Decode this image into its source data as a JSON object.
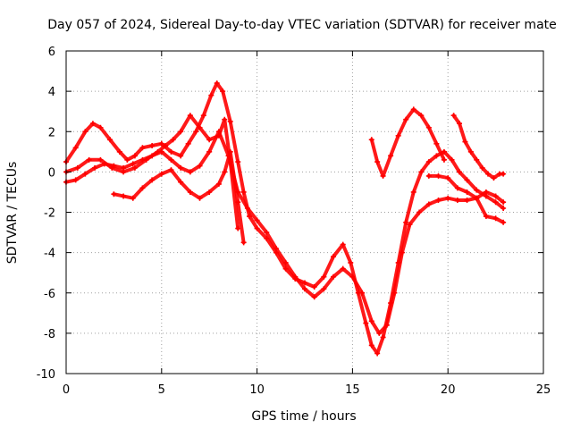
{
  "chart_data": {
    "type": "scatter",
    "title": "Day 057 of 2024, Sidereal Day-to-day VTEC variation (SDTVAR) for receiver mate",
    "xlabel": "GPS time / hours",
    "ylabel": "SDTVAR / TECUs",
    "xlim": [
      0,
      25
    ],
    "ylim": [
      -10,
      6
    ],
    "xticks": [
      0,
      5,
      10,
      15,
      20,
      25
    ],
    "yticks": [
      -10,
      -8,
      -6,
      -4,
      -2,
      0,
      2,
      4,
      6
    ],
    "grid": true,
    "marker": "plus",
    "color": "#ff0000",
    "series": [
      {
        "x": [
          0,
          0.5,
          1.0,
          1.4,
          1.8,
          2.3,
          2.8,
          3.2,
          3.6,
          4.0,
          4.5,
          5.0,
          5.5,
          6.0,
          6.4,
          6.8,
          7.2,
          7.6,
          7.9,
          8.2,
          8.6,
          9.0,
          9.3,
          9.6,
          10.0,
          10.5,
          11.0,
          11.5,
          12.0,
          12.5,
          13.0,
          13.5,
          14.0,
          14.5,
          14.9,
          15.3,
          15.7,
          16.0,
          16.3,
          16.6,
          17.0,
          17.4,
          17.8,
          18.2,
          18.6,
          19.0,
          19.4,
          19.8,
          20.2,
          20.6,
          21.0,
          21.5,
          22.0,
          22.5,
          22.9
        ],
        "y": [
          0.5,
          1.2,
          2.0,
          2.4,
          2.2,
          1.6,
          1.0,
          0.6,
          0.8,
          1.2,
          1.3,
          1.4,
          1.0,
          0.8,
          1.4,
          2.0,
          2.8,
          3.8,
          4.4,
          4.0,
          2.5,
          0.5,
          -1.0,
          -2.2,
          -2.8,
          -3.3,
          -4.0,
          -4.8,
          -5.3,
          -5.5,
          -5.7,
          -5.2,
          -4.2,
          -3.6,
          -4.5,
          -6.0,
          -7.5,
          -8.6,
          -9.0,
          -8.2,
          -6.5,
          -4.5,
          -2.5,
          -1.0,
          0.0,
          0.5,
          0.8,
          1.0,
          0.6,
          0.0,
          -0.4,
          -0.9,
          -1.2,
          -1.5,
          -1.8
        ]
      },
      {
        "x": [
          0,
          0.5,
          1.0,
          1.5,
          2.0,
          2.5,
          3.0,
          3.5,
          4.0,
          4.5,
          5.0,
          5.5,
          6.0,
          6.5,
          7.0,
          7.5,
          8.0,
          8.5,
          9.0,
          9.5,
          10.0,
          10.5,
          11.0,
          11.5,
          12.0,
          12.5,
          13.0,
          13.5,
          14.0,
          14.5,
          15.0,
          15.5,
          16.0,
          16.4,
          16.8,
          17.2,
          17.6,
          18.0,
          18.5,
          19.0,
          19.5,
          20.0,
          20.5,
          21.0,
          21.5,
          22.0,
          22.5,
          22.9
        ],
        "y": [
          -0.5,
          -0.4,
          -0.1,
          0.2,
          0.4,
          0.3,
          0.2,
          0.4,
          0.6,
          0.8,
          1.0,
          0.6,
          0.2,
          0.0,
          0.3,
          1.0,
          2.0,
          0.8,
          -1.0,
          -1.8,
          -2.4,
          -3.0,
          -3.8,
          -4.5,
          -5.2,
          -5.8,
          -6.2,
          -5.8,
          -5.2,
          -4.8,
          -5.2,
          -6.0,
          -7.4,
          -8.0,
          -7.6,
          -6.0,
          -4.0,
          -2.6,
          -2.0,
          -1.6,
          -1.4,
          -1.3,
          -1.4,
          -1.4,
          -1.3,
          -1.0,
          -1.2,
          -1.5
        ]
      },
      {
        "x": [
          0,
          0.6,
          1.2,
          1.8,
          2.4,
          3.0,
          3.6,
          4.2,
          4.8,
          5.2,
          5.6,
          6.0,
          6.5,
          7.0,
          7.5,
          8.0,
          8.3,
          8.6,
          9.0
        ],
        "y": [
          0.0,
          0.2,
          0.6,
          0.6,
          0.2,
          0.0,
          0.2,
          0.6,
          1.0,
          1.3,
          1.6,
          2.0,
          2.8,
          2.2,
          1.6,
          1.8,
          2.6,
          0.5,
          -2.8
        ]
      },
      {
        "x": [
          2.5,
          3.0,
          3.5,
          4.0,
          4.5,
          5.0,
          5.5,
          6.0,
          6.5,
          7.0,
          7.5,
          8.0,
          8.3,
          8.6,
          9.0,
          9.3
        ],
        "y": [
          -1.1,
          -1.2,
          -1.3,
          -0.8,
          -0.4,
          -0.1,
          0.1,
          -0.5,
          -1.0,
          -1.3,
          -1.0,
          -0.6,
          0.0,
          1.0,
          -1.5,
          -3.5
        ]
      },
      {
        "x": [
          16.0,
          16.3,
          16.6,
          17.0,
          17.4,
          17.8,
          18.2,
          18.6,
          19.0,
          19.4,
          19.8
        ],
        "y": [
          1.6,
          0.5,
          -0.2,
          0.8,
          1.8,
          2.6,
          3.1,
          2.8,
          2.2,
          1.4,
          0.6
        ]
      },
      {
        "x": [
          20.3,
          20.6,
          20.9,
          21.2,
          21.5,
          21.8,
          22.1,
          22.4,
          22.7,
          22.9
        ],
        "y": [
          2.8,
          2.4,
          1.5,
          1.0,
          0.6,
          0.2,
          -0.1,
          -0.3,
          -0.1,
          -0.1
        ]
      },
      {
        "x": [
          19.0,
          19.5,
          20.0,
          20.5,
          21.0,
          21.5,
          22.0,
          22.5,
          22.9
        ],
        "y": [
          -0.2,
          -0.2,
          -0.3,
          -0.8,
          -1.0,
          -1.3,
          -2.2,
          -2.3,
          -2.5
        ]
      }
    ]
  }
}
